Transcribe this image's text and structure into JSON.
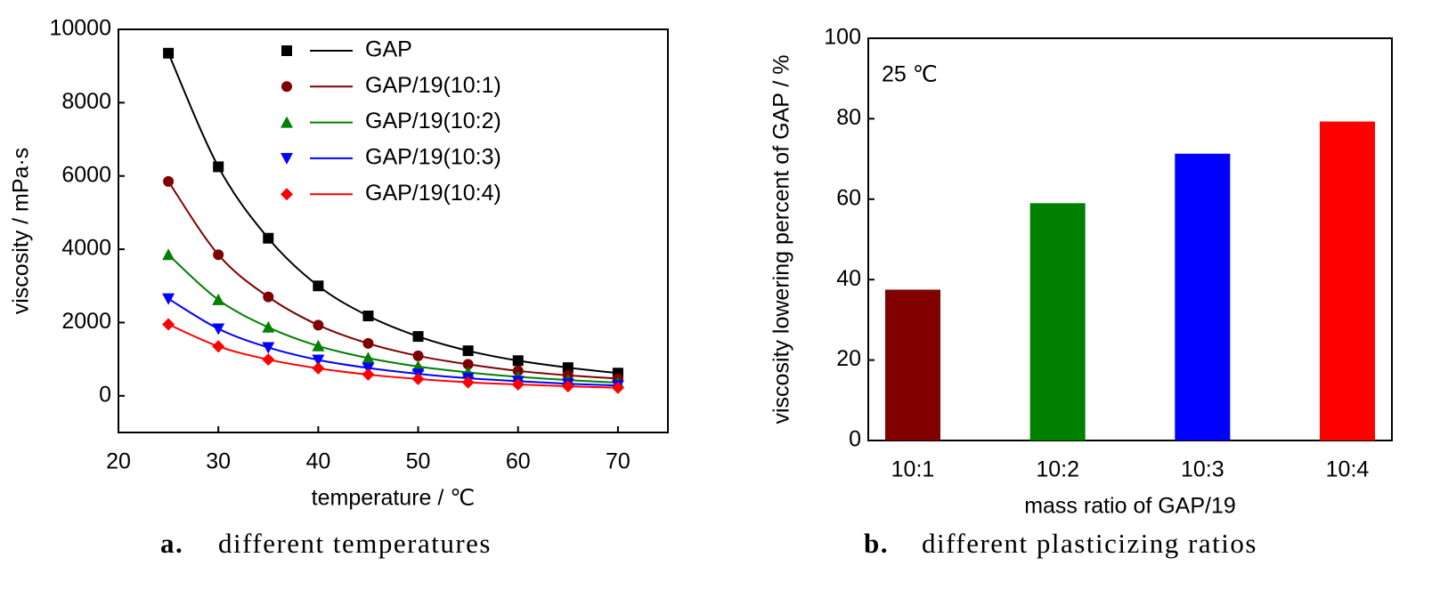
{
  "chart_data": [
    {
      "type": "scatter",
      "xlabel": "temperature / ℃",
      "ylabel": "viscosity / mPa·s",
      "caption_label": "a.",
      "caption": "different temperatures",
      "x": [
        25,
        30,
        35,
        40,
        45,
        50,
        55,
        60,
        65,
        70
      ],
      "series": [
        {
          "name": "GAP",
          "color": "#000000",
          "marker": "square",
          "values": [
            9350,
            6250,
            4300,
            3000,
            2180,
            1620,
            1230,
            960,
            770,
            620
          ]
        },
        {
          "name": "GAP/19(10:1)",
          "color": "#7f0000",
          "marker": "circle",
          "values": [
            5850,
            3850,
            2700,
            1930,
            1430,
            1090,
            860,
            680,
            560,
            470
          ]
        },
        {
          "name": "GAP/19(10:2)",
          "color": "#008000",
          "marker": "triangle-up",
          "values": [
            3850,
            2620,
            1870,
            1360,
            1030,
            800,
            640,
            520,
            430,
            360
          ]
        },
        {
          "name": "GAP/19(10:3)",
          "color": "#0000ff",
          "marker": "triangle-down",
          "values": [
            2650,
            1830,
            1320,
            980,
            760,
            600,
            480,
            400,
            330,
            280
          ]
        },
        {
          "name": "GAP/19(10:4)",
          "color": "#ff0000",
          "marker": "diamond",
          "values": [
            1950,
            1350,
            990,
            750,
            580,
            460,
            370,
            310,
            260,
            220
          ]
        }
      ],
      "xlim": [
        20,
        75
      ],
      "ylim": [
        -1000,
        10000
      ],
      "xticks": [
        20,
        30,
        40,
        50,
        60,
        70
      ],
      "yticks": [
        0,
        2000,
        4000,
        6000,
        8000,
        10000
      ]
    },
    {
      "type": "bar",
      "xlabel": "mass ratio of GAP/19",
      "ylabel": "viscosity lowering percent of GAP / %",
      "annotation": "25 ℃",
      "caption_label": "b.",
      "caption": "different plasticizing ratios",
      "categories": [
        "10:1",
        "10:2",
        "10:3",
        "10:4"
      ],
      "values": [
        37.5,
        59,
        71.3,
        79.3
      ],
      "colors": [
        "#800000",
        "#008000",
        "#0000ff",
        "#ff0000"
      ],
      "ylim": [
        0,
        100
      ],
      "yticks": [
        0,
        20,
        40,
        60,
        80,
        100
      ]
    }
  ]
}
